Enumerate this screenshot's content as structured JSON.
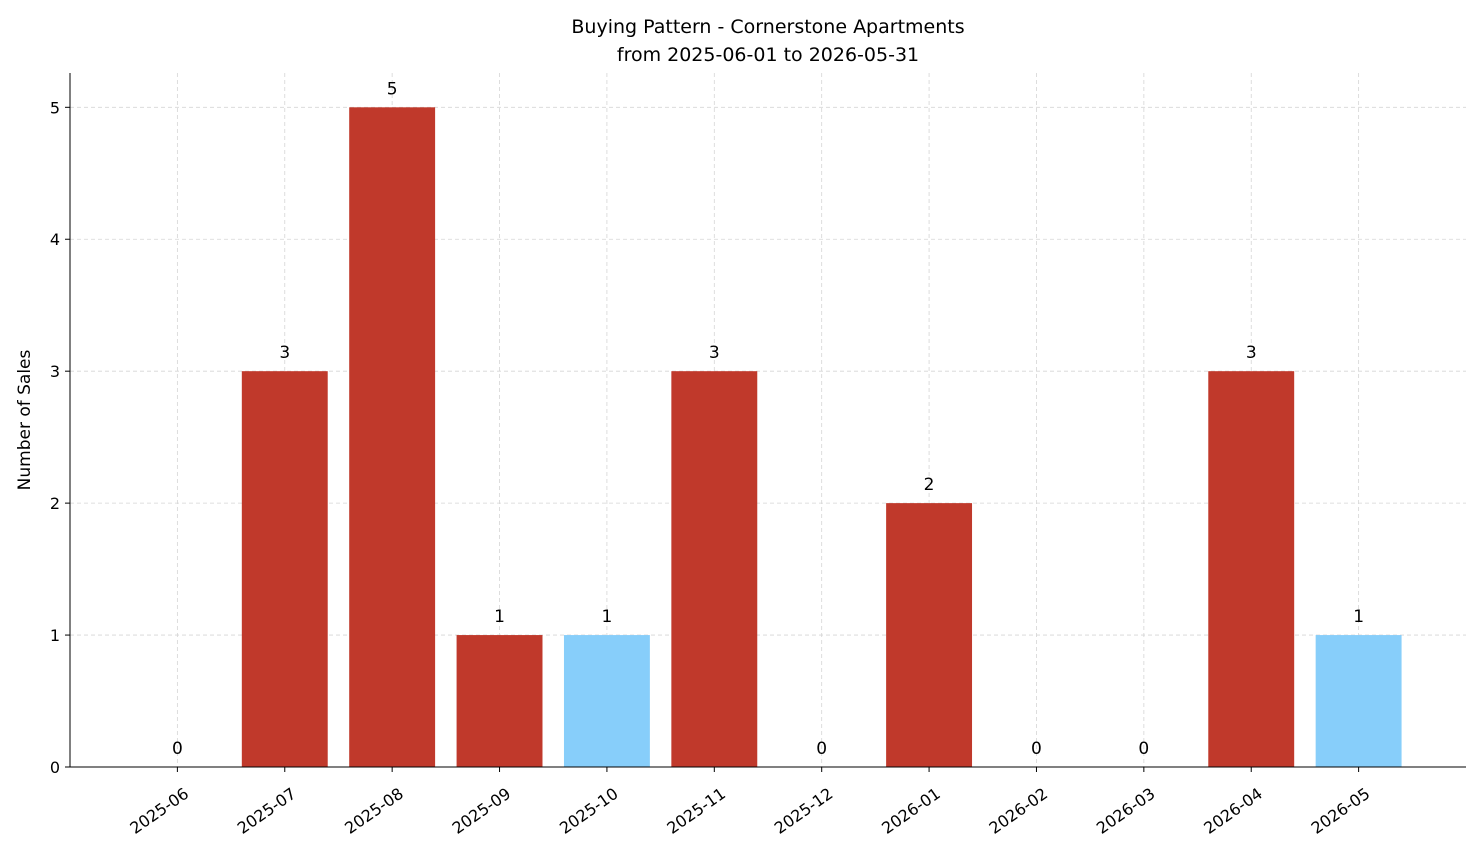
{
  "chart_data": {
    "type": "bar",
    "title": "Buying Pattern - Cornerstone Apartments",
    "subtitle": "from 2025-06-01 to 2026-05-31",
    "y_label": "Number of Sales",
    "categories": [
      "2025-06",
      "2025-07",
      "2025-08",
      "2025-09",
      "2025-10",
      "2025-11",
      "2025-12",
      "2026-01",
      "2026-02",
      "2026-03",
      "2026-04",
      "2026-05"
    ],
    "values": [
      0,
      3,
      5,
      1,
      1,
      3,
      0,
      2,
      0,
      0,
      3,
      1
    ],
    "colors": [
      "#c0392b",
      "#c0392b",
      "#c0392b",
      "#c0392b",
      "#87cefa",
      "#c0392b",
      "#c0392b",
      "#c0392b",
      "#c0392b",
      "#c0392b",
      "#c0392b",
      "#87cefa"
    ],
    "ylim": [
      0,
      5.26
    ],
    "yticks": [
      0,
      1,
      2,
      3,
      4,
      5
    ],
    "grid": true
  }
}
